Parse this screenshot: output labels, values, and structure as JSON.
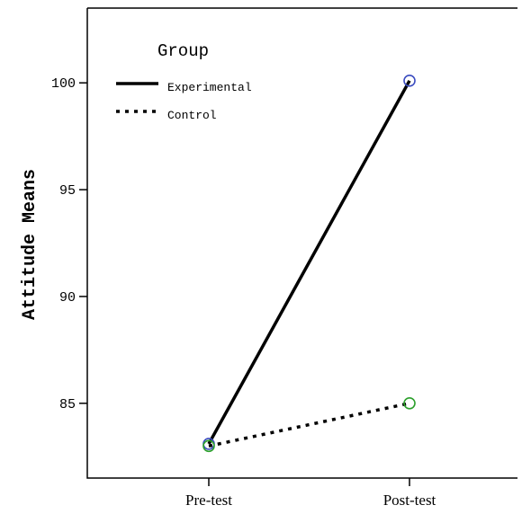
{
  "chart_data": {
    "type": "line",
    "categories": [
      "Pre-test",
      "Post-test"
    ],
    "series": [
      {
        "name": "Experimental",
        "values": [
          83.1,
          100.1
        ],
        "line_style": "solid",
        "marker_color": "#3b4cc0"
      },
      {
        "name": "Control",
        "values": [
          83.0,
          85.0
        ],
        "line_style": "dotted",
        "marker_color": "#2ca02c"
      }
    ],
    "ylabel": "Attitude Means",
    "xlabel": "",
    "ylim": [
      81.5,
      103.5
    ],
    "yticks": [
      85,
      90,
      95,
      100
    ],
    "legend": {
      "title": "Group",
      "placement": "top-left"
    },
    "grid": false
  }
}
